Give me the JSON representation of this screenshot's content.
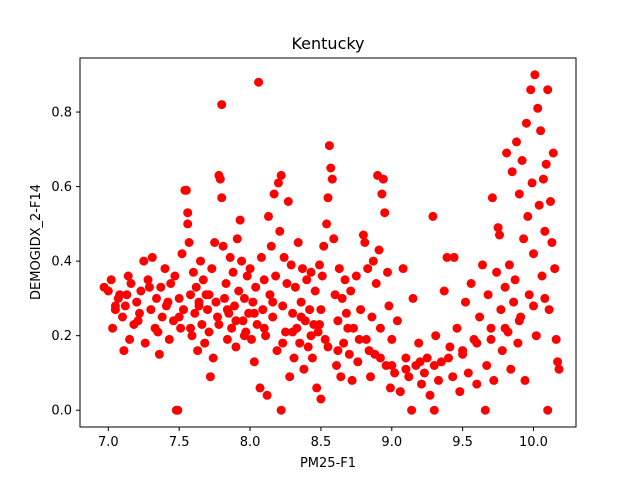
{
  "chart_data": {
    "type": "scatter",
    "title": "Kentucky",
    "xlabel": "PM25-F1",
    "ylabel": "DEMOGIDX_2-F14",
    "xlim": [
      6.8,
      10.3
    ],
    "ylim": [
      -0.045,
      0.945
    ],
    "xticks": [
      7.0,
      7.5,
      8.0,
      8.5,
      9.0,
      9.5,
      10.0
    ],
    "xtick_labels": [
      "7.0",
      "7.5",
      "8.0",
      "8.5",
      "9.0",
      "9.5",
      "10.0"
    ],
    "yticks": [
      0.0,
      0.2,
      0.4,
      0.6,
      0.8
    ],
    "ytick_labels": [
      "0.0",
      "0.2",
      "0.4",
      "0.6",
      "0.8"
    ],
    "grid": false,
    "marker_color": "#ff0000",
    "points": [
      [
        6.97,
        0.33
      ],
      [
        7.0,
        0.32
      ],
      [
        7.02,
        0.35
      ],
      [
        7.03,
        0.22
      ],
      [
        7.05,
        0.28
      ],
      [
        7.07,
        0.3
      ],
      [
        7.08,
        0.31
      ],
      [
        7.1,
        0.25
      ],
      [
        7.11,
        0.16
      ],
      [
        7.12,
        0.28
      ],
      [
        7.14,
        0.36
      ],
      [
        7.15,
        0.19
      ],
      [
        7.16,
        0.34
      ],
      [
        7.18,
        0.23
      ],
      [
        7.2,
        0.29
      ],
      [
        7.22,
        0.26
      ],
      [
        7.23,
        0.32
      ],
      [
        7.25,
        0.4
      ],
      [
        7.26,
        0.18
      ],
      [
        7.28,
        0.35
      ],
      [
        7.3,
        0.27
      ],
      [
        7.31,
        0.41
      ],
      [
        7.33,
        0.22
      ],
      [
        7.34,
        0.3
      ],
      [
        7.36,
        0.15
      ],
      [
        7.37,
        0.33
      ],
      [
        7.38,
        0.25
      ],
      [
        7.4,
        0.38
      ],
      [
        7.41,
        0.28
      ],
      [
        7.43,
        0.19
      ],
      [
        7.44,
        0.34
      ],
      [
        7.46,
        0.24
      ],
      [
        7.47,
        0.36
      ],
      [
        7.48,
        0.0
      ],
      [
        7.49,
        0.0
      ],
      [
        7.5,
        0.3
      ],
      [
        7.51,
        0.22
      ],
      [
        7.52,
        0.42
      ],
      [
        7.53,
        0.27
      ],
      [
        7.54,
        0.59
      ],
      [
        7.55,
        0.59
      ],
      [
        7.56,
        0.5
      ],
      [
        7.56,
        0.53
      ],
      [
        7.57,
        0.45
      ],
      [
        7.58,
        0.31
      ],
      [
        7.59,
        0.2
      ],
      [
        7.6,
        0.37
      ],
      [
        7.61,
        0.26
      ],
      [
        7.62,
        0.33
      ],
      [
        7.63,
        0.16
      ],
      [
        7.64,
        0.29
      ],
      [
        7.65,
        0.4
      ],
      [
        7.66,
        0.23
      ],
      [
        7.67,
        0.35
      ],
      [
        7.68,
        0.18
      ],
      [
        7.69,
        0.31
      ],
      [
        7.7,
        0.27
      ],
      [
        7.71,
        0.21
      ],
      [
        7.72,
        0.09
      ],
      [
        7.73,
        0.38
      ],
      [
        7.74,
        0.14
      ],
      [
        7.75,
        0.45
      ],
      [
        7.76,
        0.29
      ],
      [
        7.77,
        0.25
      ],
      [
        7.78,
        0.63
      ],
      [
        7.79,
        0.62
      ],
      [
        7.8,
        0.57
      ],
      [
        7.8,
        0.82
      ],
      [
        7.81,
        0.44
      ],
      [
        7.82,
        0.3
      ],
      [
        7.83,
        0.34
      ],
      [
        7.84,
        0.19
      ],
      [
        7.85,
        0.26
      ],
      [
        7.86,
        0.41
      ],
      [
        7.87,
        0.22
      ],
      [
        7.88,
        0.37
      ],
      [
        7.89,
        0.28
      ],
      [
        7.9,
        0.17
      ],
      [
        7.91,
        0.46
      ],
      [
        7.92,
        0.32
      ],
      [
        7.93,
        0.51
      ],
      [
        7.94,
        0.4
      ],
      [
        7.95,
        0.24
      ],
      [
        7.96,
        0.3
      ],
      [
        7.97,
        0.21
      ],
      [
        7.98,
        0.36
      ],
      [
        7.99,
        0.26
      ],
      [
        8.0,
        0.38
      ],
      [
        8.01,
        0.19
      ],
      [
        8.02,
        0.29
      ],
      [
        8.03,
        0.13
      ],
      [
        8.04,
        0.33
      ],
      [
        8.05,
        0.23
      ],
      [
        8.06,
        0.88
      ],
      [
        8.07,
        0.06
      ],
      [
        8.08,
        0.41
      ],
      [
        8.09,
        0.27
      ],
      [
        8.1,
        0.35
      ],
      [
        8.11,
        0.2
      ],
      [
        8.12,
        0.04
      ],
      [
        8.13,
        0.52
      ],
      [
        8.14,
        0.31
      ],
      [
        8.15,
        0.44
      ],
      [
        8.16,
        0.25
      ],
      [
        8.17,
        0.58
      ],
      [
        8.18,
        0.36
      ],
      [
        8.19,
        0.16
      ],
      [
        8.2,
        0.61
      ],
      [
        8.21,
        0.48
      ],
      [
        8.22,
        0.0
      ],
      [
        8.22,
        0.63
      ],
      [
        8.23,
        0.28
      ],
      [
        8.24,
        0.41
      ],
      [
        8.25,
        0.21
      ],
      [
        8.26,
        0.34
      ],
      [
        8.27,
        0.56
      ],
      [
        8.28,
        0.09
      ],
      [
        8.29,
        0.39
      ],
      [
        8.3,
        0.26
      ],
      [
        8.31,
        0.14
      ],
      [
        8.32,
        0.33
      ],
      [
        8.33,
        0.22
      ],
      [
        8.34,
        0.45
      ],
      [
        8.35,
        0.18
      ],
      [
        8.36,
        0.29
      ],
      [
        8.37,
        0.38
      ],
      [
        8.38,
        0.11
      ],
      [
        8.39,
        0.24
      ],
      [
        8.4,
        0.35
      ],
      [
        8.41,
        0.17
      ],
      [
        8.42,
        0.27
      ],
      [
        8.43,
        0.37
      ],
      [
        8.44,
        0.14
      ],
      [
        8.45,
        0.23
      ],
      [
        8.46,
        0.32
      ],
      [
        8.47,
        0.06
      ],
      [
        8.48,
        0.21
      ],
      [
        8.49,
        0.39
      ],
      [
        8.5,
        0.03
      ],
      [
        8.5,
        0.27
      ],
      [
        8.51,
        0.36
      ],
      [
        8.52,
        0.44
      ],
      [
        8.53,
        0.19
      ],
      [
        8.54,
        0.5
      ],
      [
        8.55,
        0.57
      ],
      [
        8.56,
        0.71
      ],
      [
        8.57,
        0.65
      ],
      [
        8.58,
        0.62
      ],
      [
        8.59,
        0.46
      ],
      [
        8.6,
        0.31
      ],
      [
        8.61,
        0.12
      ],
      [
        8.62,
        0.24
      ],
      [
        8.63,
        0.38
      ],
      [
        8.64,
        0.09
      ],
      [
        8.65,
        0.3
      ],
      [
        8.66,
        0.18
      ],
      [
        8.67,
        0.35
      ],
      [
        8.68,
        0.26
      ],
      [
        8.7,
        0.15
      ],
      [
        8.71,
        0.32
      ],
      [
        8.72,
        0.08
      ],
      [
        8.73,
        0.22
      ],
      [
        8.75,
        0.36
      ],
      [
        8.76,
        0.13
      ],
      [
        8.78,
        0.27
      ],
      [
        8.8,
        0.47
      ],
      [
        8.81,
        0.45
      ],
      [
        8.82,
        0.19
      ],
      [
        8.83,
        0.38
      ],
      [
        8.85,
        0.09
      ],
      [
        8.86,
        0.25
      ],
      [
        8.87,
        0.4
      ],
      [
        8.88,
        0.15
      ],
      [
        8.89,
        0.34
      ],
      [
        8.9,
        0.63
      ],
      [
        8.91,
        0.43
      ],
      [
        8.92,
        0.22
      ],
      [
        8.93,
        0.58
      ],
      [
        8.94,
        0.62
      ],
      [
        8.95,
        0.53
      ],
      [
        8.96,
        0.12
      ],
      [
        8.97,
        0.37
      ],
      [
        8.98,
        0.28
      ],
      [
        8.99,
        0.06
      ],
      [
        9.0,
        0.19
      ],
      [
        9.02,
        0.1
      ],
      [
        9.04,
        0.24
      ],
      [
        9.06,
        0.05
      ],
      [
        9.08,
        0.38
      ],
      [
        9.1,
        0.14
      ],
      [
        9.12,
        0.09
      ],
      [
        9.14,
        0.0
      ],
      [
        9.15,
        0.3
      ],
      [
        9.17,
        0.12
      ],
      [
        9.19,
        0.18
      ],
      [
        9.21,
        0.07
      ],
      [
        9.23,
        0.1
      ],
      [
        9.25,
        0.14
      ],
      [
        9.27,
        0.04
      ],
      [
        9.29,
        0.52
      ],
      [
        9.3,
        0.0
      ],
      [
        9.31,
        0.2
      ],
      [
        9.33,
        0.08
      ],
      [
        9.35,
        0.13
      ],
      [
        9.37,
        0.32
      ],
      [
        9.39,
        0.41
      ],
      [
        9.41,
        0.17
      ],
      [
        9.43,
        0.09
      ],
      [
        9.44,
        0.41
      ],
      [
        9.46,
        0.22
      ],
      [
        9.48,
        0.05
      ],
      [
        9.5,
        0.15
      ],
      [
        9.52,
        0.29
      ],
      [
        9.54,
        0.1
      ],
      [
        9.56,
        0.34
      ],
      [
        9.58,
        0.19
      ],
      [
        9.6,
        0.07
      ],
      [
        9.62,
        0.25
      ],
      [
        9.64,
        0.39
      ],
      [
        9.66,
        0.0
      ],
      [
        9.67,
        0.12
      ],
      [
        9.68,
        0.31
      ],
      [
        9.7,
        0.22
      ],
      [
        9.71,
        0.57
      ],
      [
        9.72,
        0.08
      ],
      [
        9.74,
        0.37
      ],
      [
        9.75,
        0.49
      ],
      [
        9.76,
        0.47
      ],
      [
        9.77,
        0.27
      ],
      [
        9.78,
        0.16
      ],
      [
        9.8,
        0.33
      ],
      [
        9.81,
        0.69
      ],
      [
        9.82,
        0.21
      ],
      [
        9.83,
        0.39
      ],
      [
        9.84,
        0.11
      ],
      [
        9.85,
        0.64
      ],
      [
        9.86,
        0.29
      ],
      [
        9.87,
        0.35
      ],
      [
        9.88,
        0.72
      ],
      [
        9.89,
        0.18
      ],
      [
        9.9,
        0.58
      ],
      [
        9.91,
        0.25
      ],
      [
        9.92,
        0.67
      ],
      [
        9.93,
        0.46
      ],
      [
        9.94,
        0.08
      ],
      [
        9.95,
        0.77
      ],
      [
        9.96,
        0.52
      ],
      [
        9.97,
        0.31
      ],
      [
        9.98,
        0.86
      ],
      [
        9.99,
        0.61
      ],
      [
        10.0,
        0.42
      ],
      [
        10.01,
        0.9
      ],
      [
        10.02,
        0.2
      ],
      [
        10.03,
        0.81
      ],
      [
        10.04,
        0.55
      ],
      [
        10.05,
        0.75
      ],
      [
        10.06,
        0.36
      ],
      [
        10.07,
        0.62
      ],
      [
        10.08,
        0.48
      ],
      [
        10.09,
        0.66
      ],
      [
        10.1,
        0.0
      ],
      [
        10.1,
        0.86
      ],
      [
        10.11,
        0.27
      ],
      [
        10.12,
        0.56
      ],
      [
        10.13,
        0.45
      ],
      [
        10.14,
        0.69
      ],
      [
        10.15,
        0.38
      ],
      [
        10.16,
        0.19
      ],
      [
        10.17,
        0.13
      ],
      [
        10.18,
        0.11
      ],
      [
        7.05,
        0.27
      ],
      [
        7.13,
        0.31
      ],
      [
        7.21,
        0.24
      ],
      [
        7.29,
        0.33
      ],
      [
        7.35,
        0.21
      ],
      [
        7.42,
        0.29
      ],
      [
        7.5,
        0.25
      ],
      [
        7.58,
        0.22
      ],
      [
        7.64,
        0.28
      ],
      [
        7.71,
        0.31
      ],
      [
        7.78,
        0.23
      ],
      [
        7.84,
        0.27
      ],
      [
        7.9,
        0.24
      ],
      [
        7.96,
        0.2
      ],
      [
        8.03,
        0.26
      ],
      [
        8.1,
        0.22
      ],
      [
        8.16,
        0.29
      ],
      [
        8.23,
        0.18
      ],
      [
        8.3,
        0.21
      ],
      [
        8.36,
        0.25
      ],
      [
        8.43,
        0.2
      ],
      [
        8.49,
        0.23
      ],
      [
        8.55,
        0.17
      ],
      [
        8.62,
        0.16
      ],
      [
        8.69,
        0.22
      ],
      [
        8.77,
        0.19
      ],
      [
        8.84,
        0.16
      ],
      [
        8.92,
        0.14
      ],
      [
        9.0,
        0.12
      ],
      [
        9.1,
        0.11
      ],
      [
        9.2,
        0.13
      ],
      [
        9.3,
        0.12
      ],
      [
        9.4,
        0.14
      ],
      [
        9.5,
        0.16
      ],
      [
        9.6,
        0.18
      ],
      [
        9.7,
        0.19
      ],
      [
        9.8,
        0.22
      ],
      [
        9.9,
        0.24
      ],
      [
        10.0,
        0.28
      ],
      [
        10.08,
        0.3
      ]
    ]
  }
}
